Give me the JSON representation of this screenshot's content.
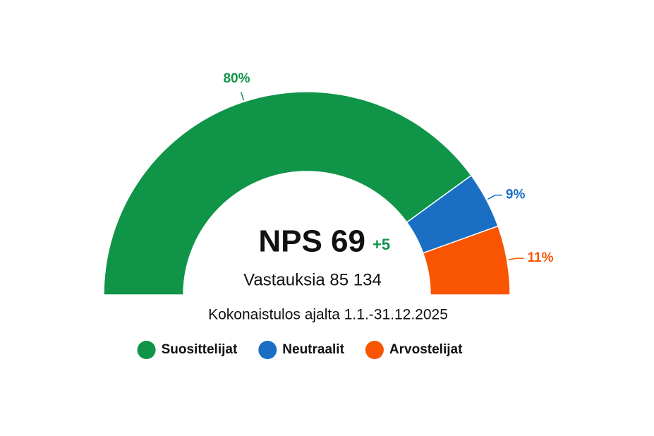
{
  "chart_data": {
    "type": "half-donut",
    "center_title": "NPS 69",
    "center_change": "+5",
    "center_subtitle": "Vastauksia 85 134",
    "subtitle": "Kokonaistulos ajalta 1.1.-31.12.2025",
    "categories": [
      "Suosittelijat",
      "Neutraalit",
      "Arvostelijat"
    ],
    "values": [
      80,
      9,
      11
    ],
    "value_labels": [
      "80%",
      "9%",
      "11%"
    ],
    "colors": [
      "#0f9448",
      "#1a6fc4",
      "#f95500"
    ],
    "legend": "bottom"
  }
}
